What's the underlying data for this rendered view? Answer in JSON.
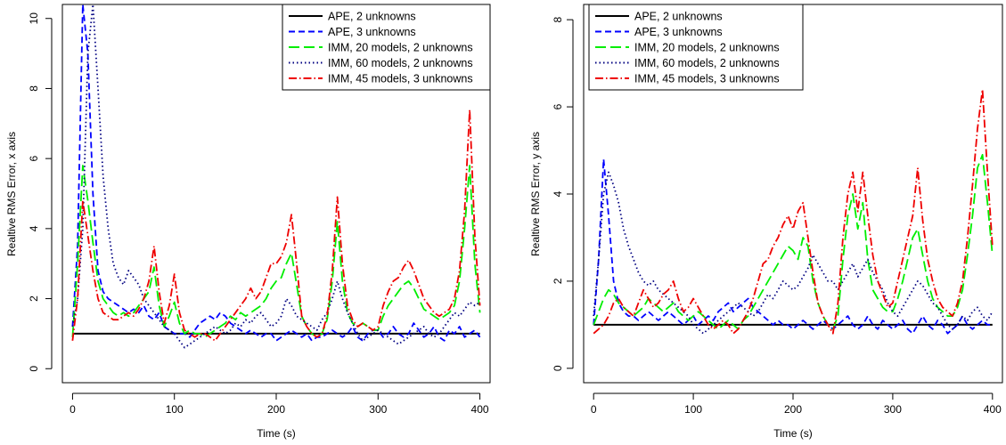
{
  "chart_data": [
    {
      "type": "line",
      "title": "",
      "xlabel": "Time (s)",
      "ylabel": "Realtive RMS Error, x axis",
      "xlim": [
        -10,
        410
      ],
      "ylim": [
        -0.4,
        10.4
      ],
      "xticks": [
        0,
        100,
        200,
        300,
        400
      ],
      "yticks": [
        0,
        2,
        4,
        6,
        8,
        10
      ],
      "xtick_labels": [
        "0",
        "100",
        "200",
        "300",
        "400"
      ],
      "ytick_labels": [
        "0",
        "2",
        "4",
        "6",
        "8",
        "10"
      ],
      "legend_position": "top-right",
      "grid": false,
      "x": [
        0,
        5,
        10,
        15,
        20,
        25,
        30,
        35,
        40,
        45,
        50,
        55,
        60,
        65,
        70,
        75,
        80,
        85,
        90,
        95,
        100,
        105,
        110,
        115,
        120,
        125,
        130,
        135,
        140,
        145,
        150,
        155,
        160,
        165,
        170,
        175,
        180,
        185,
        190,
        195,
        200,
        205,
        210,
        215,
        220,
        225,
        230,
        235,
        240,
        245,
        250,
        255,
        260,
        265,
        270,
        275,
        280,
        285,
        290,
        295,
        300,
        305,
        310,
        315,
        320,
        325,
        330,
        335,
        340,
        345,
        350,
        355,
        360,
        365,
        370,
        375,
        380,
        385,
        390,
        395,
        400
      ],
      "series": [
        {
          "name": "APE, 2 unknowns",
          "color": "#000000",
          "dash": "solid",
          "values": [
            1.0,
            1.0,
            1.0,
            1.0,
            1.0,
            1.0,
            1.0,
            1.0,
            1.0,
            1.0,
            1.0,
            1.0,
            1.0,
            1.0,
            1.0,
            1.0,
            1.0,
            1.0,
            1.0,
            1.0,
            1.0,
            1.0,
            1.0,
            1.0,
            1.0,
            1.0,
            1.0,
            1.0,
            1.0,
            1.0,
            1.0,
            1.0,
            1.0,
            1.0,
            1.0,
            1.0,
            1.0,
            1.0,
            1.0,
            1.0,
            1.0,
            1.0,
            1.0,
            1.0,
            1.0,
            1.0,
            1.0,
            1.0,
            1.0,
            1.0,
            1.0,
            1.0,
            1.0,
            1.0,
            1.0,
            1.0,
            1.0,
            1.0,
            1.0,
            1.0,
            1.0,
            1.0,
            1.0,
            1.0,
            1.0,
            1.0,
            1.0,
            1.0,
            1.0,
            1.0,
            1.0,
            1.0,
            1.0,
            1.0,
            1.0,
            1.0,
            1.0,
            1.0,
            1.0,
            1.0,
            1.0
          ]
        },
        {
          "name": "APE, 3 unknowns",
          "color": "#0000ff",
          "dash": "dashed",
          "values": [
            1.2,
            3.5,
            10.4,
            9.0,
            5.0,
            2.8,
            2.2,
            2.0,
            1.9,
            1.8,
            1.7,
            1.6,
            1.7,
            1.6,
            1.8,
            1.5,
            1.4,
            1.6,
            1.2,
            1.1,
            1.0,
            1.0,
            1.0,
            0.9,
            1.1,
            1.3,
            1.4,
            1.5,
            1.4,
            1.6,
            1.5,
            1.3,
            1.2,
            1.1,
            1.0,
            1.1,
            1.0,
            0.9,
            1.0,
            1.0,
            0.8,
            0.9,
            1.0,
            1.1,
            1.0,
            0.9,
            1.0,
            0.8,
            0.9,
            0.9,
            1.0,
            1.1,
            1.0,
            0.9,
            1.0,
            1.2,
            0.9,
            0.8,
            1.0,
            1.1,
            1.1,
            0.9,
            1.0,
            1.2,
            1.0,
            0.9,
            1.0,
            1.3,
            1.1,
            0.9,
            1.0,
            1.2,
            0.9,
            0.8,
            1.1,
            1.0,
            1.2,
            0.9,
            1.0,
            1.1,
            0.9
          ]
        },
        {
          "name": "IMM, 20 models, 2 unknowns",
          "color": "#00ee00",
          "dash": "longdash",
          "values": [
            0.9,
            3.0,
            5.8,
            4.8,
            3.6,
            2.5,
            2.0,
            1.8,
            1.6,
            1.5,
            1.6,
            1.5,
            1.6,
            1.8,
            2.0,
            2.2,
            2.9,
            1.8,
            1.2,
            1.5,
            1.9,
            1.3,
            1.0,
            1.1,
            1.0,
            1.0,
            0.9,
            1.0,
            1.1,
            1.2,
            1.3,
            1.5,
            1.4,
            1.6,
            1.5,
            1.6,
            1.7,
            1.8,
            2.0,
            2.3,
            2.5,
            2.6,
            3.0,
            3.3,
            2.4,
            1.5,
            1.2,
            1.0,
            0.9,
            1.0,
            1.4,
            2.5,
            4.2,
            2.5,
            1.6,
            1.3,
            1.2,
            1.3,
            1.2,
            1.1,
            1.1,
            1.5,
            1.8,
            2.0,
            2.2,
            2.4,
            2.5,
            2.3,
            2.0,
            1.7,
            1.6,
            1.5,
            1.4,
            1.5,
            1.6,
            1.8,
            2.5,
            4.0,
            5.8,
            3.0,
            1.6
          ]
        },
        {
          "name": "IMM, 60 models, 2 unknowns",
          "color": "#000080",
          "dash": "dotted",
          "values": [
            1.2,
            2.0,
            4.0,
            9.0,
            10.4,
            8.0,
            5.5,
            4.0,
            3.0,
            2.6,
            2.4,
            2.8,
            2.6,
            2.4,
            2.0,
            1.8,
            1.6,
            1.4,
            1.2,
            1.1,
            1.0,
            0.8,
            0.6,
            0.7,
            0.8,
            0.9,
            1.0,
            1.1,
            1.2,
            1.1,
            1.0,
            1.1,
            1.3,
            1.2,
            1.4,
            1.3,
            1.5,
            1.6,
            1.4,
            1.2,
            1.3,
            1.5,
            2.0,
            1.8,
            1.5,
            1.4,
            1.3,
            1.2,
            1.1,
            1.4,
            1.6,
            2.0,
            2.5,
            2.0,
            1.6,
            1.3,
            1.0,
            0.8,
            0.9,
            1.0,
            1.1,
            1.0,
            0.9,
            0.8,
            0.7,
            0.8,
            0.9,
            1.0,
            1.1,
            1.2,
            1.0,
            0.9,
            1.0,
            1.2,
            1.4,
            1.6,
            1.5,
            1.7,
            1.9,
            1.8,
            1.9
          ]
        },
        {
          "name": "IMM, 45 models, 3 unknowns",
          "color": "#ee0000",
          "dash": "dashdot",
          "values": [
            0.8,
            2.0,
            4.8,
            3.8,
            2.8,
            2.0,
            1.6,
            1.5,
            1.4,
            1.4,
            1.5,
            1.6,
            1.5,
            1.7,
            2.0,
            2.5,
            3.5,
            2.2,
            1.3,
            1.8,
            2.7,
            1.6,
            1.1,
            1.0,
            0.9,
            1.0,
            1.0,
            0.9,
            0.8,
            1.0,
            1.2,
            1.4,
            1.6,
            1.8,
            2.0,
            2.3,
            2.0,
            2.2,
            2.6,
            3.0,
            3.0,
            3.2,
            3.6,
            4.4,
            3.0,
            1.5,
            1.2,
            1.0,
            0.9,
            1.0,
            1.5,
            2.8,
            4.9,
            3.0,
            1.8,
            1.4,
            1.2,
            1.3,
            1.2,
            1.1,
            1.2,
            1.8,
            2.2,
            2.5,
            2.6,
            2.9,
            3.1,
            2.8,
            2.4,
            2.0,
            1.8,
            1.6,
            1.5,
            1.6,
            1.7,
            2.0,
            2.8,
            4.5,
            7.4,
            3.8,
            1.8
          ]
        }
      ]
    },
    {
      "type": "line",
      "title": "",
      "xlabel": "Time (s)",
      "ylabel": "Realtive RMS Error, y axis",
      "xlim": [
        -10,
        410
      ],
      "ylim": [
        -0.33,
        8.35
      ],
      "xticks": [
        0,
        100,
        200,
        300,
        400
      ],
      "yticks": [
        0,
        2,
        4,
        6,
        8
      ],
      "xtick_labels": [
        "0",
        "100",
        "200",
        "300",
        "400"
      ],
      "ytick_labels": [
        "0",
        "2",
        "4",
        "6",
        "8"
      ],
      "legend_position": "top-right",
      "grid": false,
      "x": [
        0,
        5,
        10,
        15,
        20,
        25,
        30,
        35,
        40,
        45,
        50,
        55,
        60,
        65,
        70,
        75,
        80,
        85,
        90,
        95,
        100,
        105,
        110,
        115,
        120,
        125,
        130,
        135,
        140,
        145,
        150,
        155,
        160,
        165,
        170,
        175,
        180,
        185,
        190,
        195,
        200,
        205,
        210,
        215,
        220,
        225,
        230,
        235,
        240,
        245,
        250,
        255,
        260,
        265,
        270,
        275,
        280,
        285,
        290,
        295,
        300,
        305,
        310,
        315,
        320,
        325,
        330,
        335,
        340,
        345,
        350,
        355,
        360,
        365,
        370,
        375,
        380,
        385,
        390,
        395,
        400
      ],
      "series": [
        {
          "name": "APE, 2 unknowns",
          "color": "#000000",
          "dash": "solid",
          "values": [
            1.0,
            1.0,
            1.0,
            1.0,
            1.0,
            1.0,
            1.0,
            1.0,
            1.0,
            1.0,
            1.0,
            1.0,
            1.0,
            1.0,
            1.0,
            1.0,
            1.0,
            1.0,
            1.0,
            1.0,
            1.0,
            1.0,
            1.0,
            1.0,
            1.0,
            1.0,
            1.0,
            1.0,
            1.0,
            1.0,
            1.0,
            1.0,
            1.0,
            1.0,
            1.0,
            1.0,
            1.0,
            1.0,
            1.0,
            1.0,
            1.0,
            1.0,
            1.0,
            1.0,
            1.0,
            1.0,
            1.0,
            1.0,
            1.0,
            1.0,
            1.0,
            1.0,
            1.0,
            1.0,
            1.0,
            1.0,
            1.0,
            1.0,
            1.0,
            1.0,
            1.0,
            1.0,
            1.0,
            1.0,
            1.0,
            1.0,
            1.0,
            1.0,
            1.0,
            1.0,
            1.0,
            1.0,
            1.0,
            1.0,
            1.0,
            1.0,
            1.0,
            1.0,
            1.0,
            1.0,
            1.0
          ]
        },
        {
          "name": "APE, 3 unknowns",
          "color": "#0000ff",
          "dash": "dashed",
          "values": [
            1.0,
            2.5,
            4.8,
            3.5,
            2.0,
            1.5,
            1.3,
            1.2,
            1.2,
            1.1,
            1.2,
            1.3,
            1.2,
            1.1,
            1.2,
            1.3,
            1.2,
            1.1,
            1.0,
            1.1,
            1.2,
            1.0,
            1.1,
            1.2,
            1.1,
            1.3,
            1.4,
            1.5,
            1.3,
            1.4,
            1.5,
            1.6,
            1.4,
            1.3,
            1.2,
            1.1,
            1.0,
            1.1,
            1.0,
            1.0,
            0.9,
            1.0,
            1.1,
            1.0,
            0.9,
            1.0,
            1.1,
            1.0,
            0.9,
            1.0,
            1.1,
            1.2,
            1.0,
            0.9,
            1.0,
            1.2,
            1.0,
            0.9,
            1.1,
            1.0,
            0.9,
            1.0,
            1.1,
            0.9,
            0.8,
            1.0,
            1.2,
            1.0,
            0.9,
            1.1,
            1.0,
            0.8,
            0.9,
            1.0,
            1.2,
            1.0,
            0.9,
            1.0,
            1.1,
            1.0,
            1.0
          ]
        },
        {
          "name": "IMM, 20 models, 2 unknowns",
          "color": "#00ee00",
          "dash": "longdash",
          "values": [
            1.0,
            1.3,
            1.6,
            1.8,
            1.7,
            1.5,
            1.4,
            1.3,
            1.2,
            1.3,
            1.4,
            1.6,
            1.5,
            1.4,
            1.3,
            1.4,
            1.5,
            1.3,
            1.2,
            1.1,
            1.2,
            1.3,
            1.2,
            1.1,
            1.0,
            0.9,
            1.0,
            1.1,
            1.0,
            0.9,
            1.1,
            1.2,
            1.4,
            1.6,
            1.8,
            2.0,
            2.2,
            2.4,
            2.6,
            2.8,
            2.7,
            2.5,
            3.0,
            2.8,
            2.0,
            1.5,
            1.2,
            1.0,
            0.9,
            1.2,
            2.5,
            3.5,
            4.0,
            3.2,
            3.8,
            2.5,
            1.8,
            1.6,
            1.4,
            1.3,
            1.3,
            1.6,
            2.0,
            2.5,
            3.0,
            3.2,
            2.6,
            2.0,
            1.6,
            1.4,
            1.3,
            1.2,
            1.2,
            1.4,
            1.8,
            2.6,
            3.5,
            4.6,
            4.9,
            3.8,
            2.6
          ]
        },
        {
          "name": "IMM, 60 models, 2 unknowns",
          "color": "#000080",
          "dash": "dotted",
          "values": [
            1.2,
            2.5,
            4.0,
            4.5,
            4.2,
            3.8,
            3.2,
            2.8,
            2.5,
            2.2,
            2.0,
            1.9,
            2.0,
            1.8,
            1.7,
            1.6,
            1.5,
            1.4,
            1.3,
            1.2,
            1.0,
            0.9,
            0.8,
            0.9,
            1.0,
            1.1,
            1.2,
            1.3,
            1.4,
            1.5,
            1.4,
            1.3,
            1.2,
            1.3,
            1.5,
            1.7,
            1.6,
            1.8,
            2.0,
            1.9,
            1.8,
            1.9,
            2.1,
            2.3,
            2.6,
            2.4,
            2.2,
            2.0,
            2.0,
            1.8,
            2.0,
            2.2,
            2.4,
            2.1,
            2.3,
            2.5,
            2.2,
            2.0,
            1.8,
            1.5,
            1.3,
            1.2,
            1.4,
            1.6,
            1.8,
            2.0,
            1.9,
            1.7,
            1.5,
            1.4,
            1.2,
            1.0,
            0.9,
            1.0,
            1.2,
            1.1,
            1.3,
            1.4,
            1.2,
            1.1,
            1.3
          ]
        },
        {
          "name": "IMM, 45 models, 3 unknowns",
          "color": "#ee0000",
          "dash": "dashdot",
          "values": [
            0.8,
            0.9,
            1.0,
            1.2,
            1.5,
            1.6,
            1.4,
            1.3,
            1.2,
            1.5,
            1.8,
            1.6,
            1.4,
            1.5,
            1.7,
            1.8,
            2.0,
            1.6,
            1.3,
            1.4,
            1.6,
            1.4,
            1.2,
            1.0,
            0.9,
            1.0,
            1.1,
            1.0,
            0.8,
            0.9,
            1.1,
            1.3,
            1.6,
            2.0,
            2.4,
            2.5,
            2.8,
            3.0,
            3.3,
            3.5,
            3.2,
            3.6,
            3.8,
            3.0,
            2.2,
            1.5,
            1.2,
            1.0,
            0.8,
            1.5,
            3.0,
            4.0,
            4.5,
            3.6,
            4.5,
            3.5,
            2.6,
            2.0,
            1.7,
            1.4,
            1.5,
            2.0,
            2.5,
            3.0,
            3.5,
            4.6,
            3.4,
            2.5,
            2.0,
            1.6,
            1.4,
            1.3,
            1.2,
            1.5,
            2.0,
            3.0,
            4.2,
            5.5,
            6.4,
            4.5,
            2.8
          ]
        }
      ]
    }
  ]
}
